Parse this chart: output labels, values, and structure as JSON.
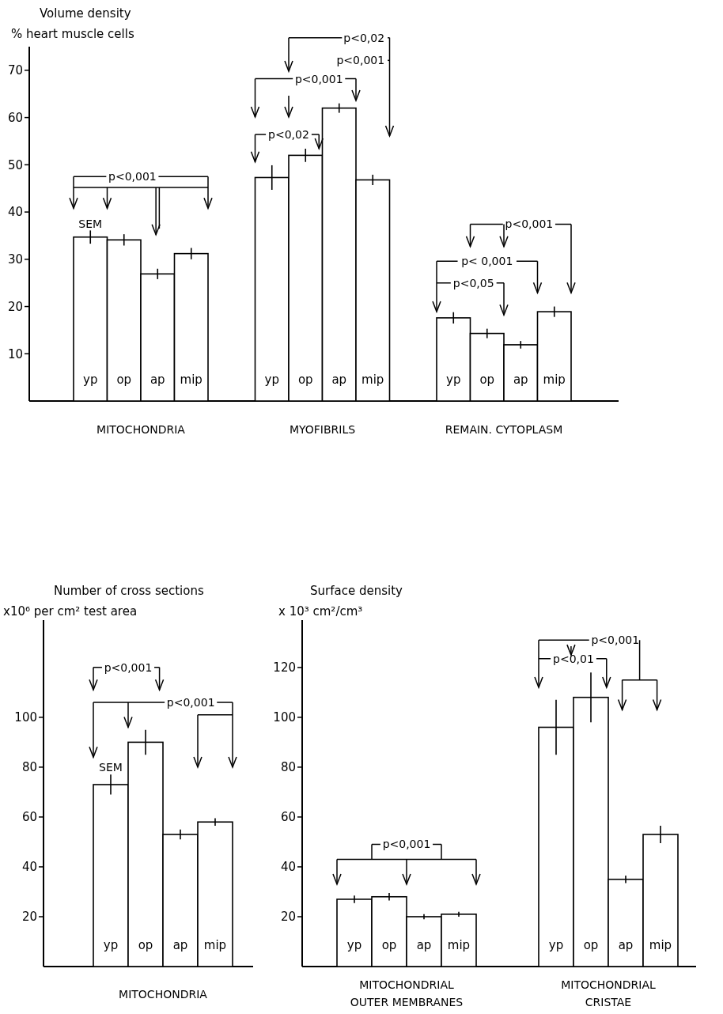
{
  "chart_data": [
    {
      "type": "bar",
      "ylabel": "Volume density\n% heart muscle cells",
      "categories": [
        "MITOCHONDRIA",
        "MYOFIBRILS",
        "REMAIN. CYTOPLASM"
      ],
      "series": [
        {
          "name": "yp",
          "color": "#ffffff",
          "values": [
            34.7,
            47.3,
            17.6
          ],
          "errors": [
            1.4,
            2.6,
            1.2
          ]
        },
        {
          "name": "op",
          "color": "#ffffff",
          "values": [
            34.1,
            52.0,
            14.3
          ],
          "errors": [
            1.2,
            1.4,
            1.0
          ]
        },
        {
          "name": "ap",
          "color": "#ffffff",
          "values": [
            26.9,
            62.0,
            11.9
          ],
          "errors": [
            1.1,
            1.0,
            0.8
          ]
        },
        {
          "name": "mip",
          "color": "#ffffff",
          "values": [
            31.2,
            46.8,
            18.9
          ],
          "errors": [
            1.2,
            1.1,
            1.1
          ]
        }
      ],
      "ylim": [
        0,
        75
      ],
      "yticks": [
        10,
        20,
        30,
        40,
        50,
        60,
        70
      ],
      "annotations": [
        "p<0,001",
        "SEM",
        "p<0,02",
        "p<0,001",
        "p<0,02",
        "p<0,001",
        "p<0,001",
        "p< 0,001",
        "p<0,05"
      ]
    },
    {
      "type": "bar",
      "ylabel": "Number of cross sections\nx10⁶ per cm² test area",
      "xlabel": "MITOCHONDRIA",
      "categories": [
        "yp",
        "op",
        "ap",
        "mip"
      ],
      "values": [
        73,
        90,
        53,
        58
      ],
      "errors": [
        4,
        5,
        2,
        1.5
      ],
      "color": "#ffffff",
      "ylim": [
        0,
        139
      ],
      "yticks": [
        20,
        40,
        60,
        80,
        100
      ],
      "annotations": [
        "p<0,001",
        "p<0,001",
        "SEM"
      ]
    },
    {
      "type": "bar",
      "ylabel": "Surface density\nx 10³ cm²/cm³",
      "categories": [
        "MITOCHONDRIAL\nOUTER MEMBRANES",
        "MITOCHONDRIAL\nCRISTAE"
      ],
      "series": [
        {
          "name": "yp",
          "color": "#ffffff",
          "values": [
            27,
            96
          ],
          "errors": [
            1.5,
            11
          ]
        },
        {
          "name": "op",
          "color": "#ffffff",
          "values": [
            28,
            108
          ],
          "errors": [
            1.5,
            10
          ]
        },
        {
          "name": "ap",
          "color": "#ffffff",
          "values": [
            20,
            35
          ],
          "errors": [
            1,
            1.5
          ]
        },
        {
          "name": "mip",
          "color": "#ffffff",
          "values": [
            21,
            53
          ],
          "errors": [
            1,
            3.5
          ]
        }
      ],
      "ylim": [
        0,
        139
      ],
      "yticks": [
        20,
        40,
        60,
        80,
        100,
        120
      ],
      "annotations": [
        "p<0,001",
        "p<0,001",
        "p<0,01"
      ]
    }
  ]
}
